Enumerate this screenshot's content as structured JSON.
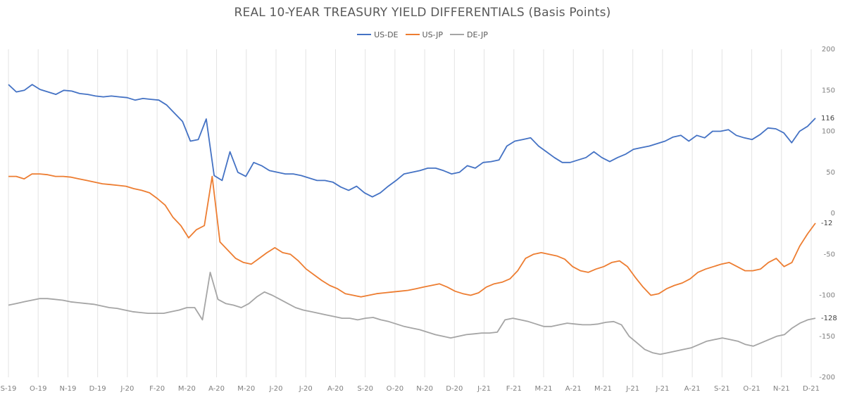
{
  "chart_data": {
    "type": "line",
    "title": "REAL 10-YEAR TREASURY YIELD DIFFERENTIALS (Basis Points)",
    "xlabel": "",
    "ylabel": "",
    "ylim": [
      -200,
      200
    ],
    "yticks": [
      200,
      150,
      100,
      50,
      0,
      -50,
      -100,
      -150,
      -200
    ],
    "xticks": [
      "S-19",
      "O-19",
      "N-19",
      "D-19",
      "J-20",
      "F-20",
      "M-20",
      "A-20",
      "M-20",
      "J-20",
      "J-20",
      "A-20",
      "S-20",
      "O-20",
      "N-20",
      "D-20",
      "J-21",
      "F-21",
      "M-21",
      "A-21",
      "M-21",
      "J-21",
      "J-21",
      "A-21",
      "S-21",
      "O-21",
      "N-21",
      "D-21"
    ],
    "grid": "vertical",
    "legend_position": "top-center",
    "series": [
      {
        "name": "US-DE",
        "color": "#4472C4",
        "end_label": "116",
        "values": [
          157,
          148,
          150,
          157,
          151,
          148,
          145,
          150,
          149,
          146,
          145,
          143,
          142,
          143,
          142,
          141,
          138,
          140,
          139,
          138,
          132,
          122,
          112,
          88,
          90,
          115,
          46,
          40,
          75,
          50,
          45,
          62,
          58,
          52,
          50,
          48,
          48,
          46,
          43,
          40,
          40,
          38,
          32,
          28,
          33,
          25,
          20,
          25,
          33,
          40,
          48,
          50,
          52,
          55,
          55,
          52,
          48,
          50,
          58,
          55,
          62,
          63,
          65,
          82,
          88,
          90,
          92,
          82,
          75,
          68,
          62,
          62,
          65,
          68,
          75,
          68,
          63,
          68,
          72,
          78,
          80,
          82,
          85,
          88,
          93,
          95,
          88,
          95,
          92,
          100,
          100,
          102,
          95,
          92,
          90,
          96,
          104,
          103,
          98,
          86,
          100,
          106,
          116
        ]
      },
      {
        "name": "US-JP",
        "color": "#ED7D31",
        "end_label": "-12",
        "values": [
          45,
          45,
          42,
          48,
          48,
          47,
          45,
          45,
          44,
          42,
          40,
          38,
          36,
          35,
          34,
          33,
          30,
          28,
          25,
          18,
          10,
          -5,
          -15,
          -30,
          -20,
          -15,
          45,
          -35,
          -45,
          -55,
          -60,
          -62,
          -55,
          -48,
          -42,
          -48,
          -50,
          -58,
          -68,
          -75,
          -82,
          -88,
          -92,
          -98,
          -100,
          -102,
          -100,
          -98,
          -97,
          -96,
          -95,
          -94,
          -92,
          -90,
          -88,
          -86,
          -90,
          -95,
          -98,
          -100,
          -97,
          -90,
          -86,
          -84,
          -80,
          -70,
          -55,
          -50,
          -48,
          -50,
          -52,
          -56,
          -65,
          -70,
          -72,
          -68,
          -65,
          -60,
          -58,
          -65,
          -78,
          -90,
          -100,
          -98,
          -92,
          -88,
          -85,
          -80,
          -72,
          -68,
          -65,
          -62,
          -60,
          -65,
          -70,
          -70,
          -68,
          -60,
          -55,
          -65,
          -60,
          -40,
          -25,
          -12
        ]
      },
      {
        "name": "DE-JP",
        "color": "#A5A5A5",
        "end_label": "-128",
        "values": [
          -112,
          -110,
          -108,
          -106,
          -104,
          -104,
          -105,
          -106,
          -108,
          -109,
          -110,
          -111,
          -113,
          -115,
          -116,
          -118,
          -120,
          -121,
          -122,
          -122,
          -122,
          -120,
          -118,
          -115,
          -115,
          -130,
          -72,
          -105,
          -110,
          -112,
          -115,
          -110,
          -102,
          -96,
          -100,
          -105,
          -110,
          -115,
          -118,
          -120,
          -122,
          -124,
          -126,
          -128,
          -128,
          -130,
          -128,
          -127,
          -130,
          -132,
          -135,
          -138,
          -140,
          -142,
          -145,
          -148,
          -150,
          -152,
          -150,
          -148,
          -147,
          -146,
          -146,
          -145,
          -130,
          -128,
          -130,
          -132,
          -135,
          -138,
          -138,
          -136,
          -134,
          -135,
          -136,
          -136,
          -135,
          -133,
          -132,
          -136,
          -150,
          -158,
          -166,
          -170,
          -172,
          -170,
          -168,
          -166,
          -164,
          -160,
          -156,
          -154,
          -152,
          -154,
          -156,
          -160,
          -162,
          -158,
          -154,
          -150,
          -148,
          -140,
          -134,
          -130,
          -128
        ]
      }
    ]
  }
}
